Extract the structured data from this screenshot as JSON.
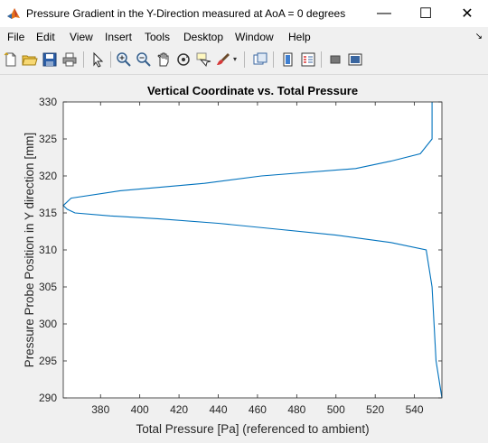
{
  "window": {
    "title": "Pressure Gradient in the Y-Direction measured at AoA =   0 degrees",
    "minimize_glyph": "—",
    "maximize_glyph": "☐",
    "close_glyph": "✕"
  },
  "menu": {
    "items": [
      "File",
      "Edit",
      "View",
      "Insert",
      "Tools",
      "Desktop",
      "Window",
      "Help"
    ],
    "dock_glyph": "↘"
  },
  "toolbar": {
    "icons": [
      "new-figure-icon",
      "open-file-icon",
      "save-icon",
      "print-icon",
      "edit-plot-icon",
      "zoom-in-icon",
      "zoom-out-icon",
      "pan-icon",
      "rotate-3d-icon",
      "data-cursor-icon",
      "brush-icon",
      "link-plot-icon",
      "colorbar-icon",
      "legend-icon",
      "hide-plot-tools-icon",
      "show-plot-tools-icon"
    ]
  },
  "chart_data": {
    "type": "line",
    "title": "Vertical Coordinate vs. Total Pressure",
    "xlabel": "Total Pressure [Pa] (referenced to ambient)",
    "ylabel": "Pressure Probe Position in Y direction [mm]",
    "xlim": [
      361,
      554
    ],
    "ylim": [
      290,
      330
    ],
    "xticks": [
      380,
      400,
      420,
      440,
      460,
      480,
      500,
      520,
      540
    ],
    "yticks": [
      290,
      295,
      300,
      305,
      310,
      315,
      320,
      325,
      330
    ],
    "grid": false,
    "line_color": "#0072bd",
    "series": [
      {
        "x": [
          554,
          551,
          550,
          549,
          546,
          528,
          500,
          470,
          440,
          410,
          385,
          367,
          363,
          361,
          365,
          390,
          433,
          462,
          510,
          528,
          543,
          549,
          549,
          549
        ],
        "y": [
          290,
          295,
          300,
          305,
          310,
          311,
          312,
          312.8,
          313.6,
          314.2,
          314.6,
          315,
          315.5,
          316,
          317,
          318,
          319,
          320,
          321,
          322,
          323,
          325,
          327,
          330
        ]
      }
    ]
  }
}
